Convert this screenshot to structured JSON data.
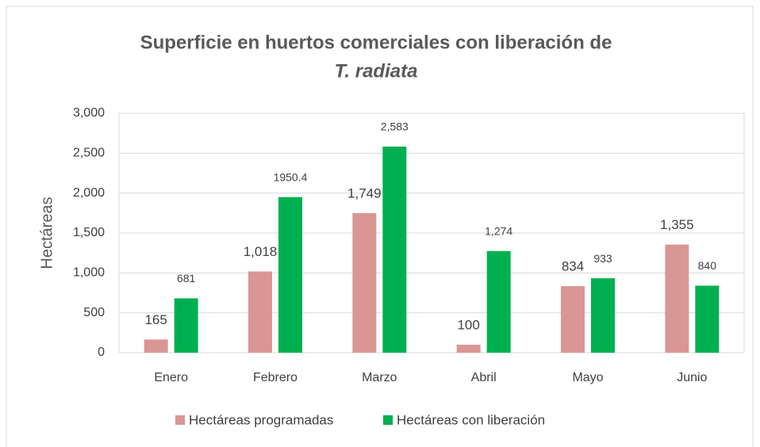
{
  "chart_data": {
    "type": "bar",
    "title": [
      "Superficie en huertos comerciales con liberación de",
      "T. radiata"
    ],
    "ylabel": "Hectáreas",
    "categories": [
      "Enero",
      "Febrero",
      "Marzo",
      "Abril",
      "Mayo",
      "Junio"
    ],
    "series": [
      {
        "name": "Hectáreas programadas",
        "color": "#d99694",
        "values": [
          165,
          1018,
          1749,
          100,
          834,
          1355
        ],
        "value_labels": [
          "165",
          "1,018",
          "1,749",
          "100",
          "834",
          "1,355"
        ]
      },
      {
        "name": "Hectáreas con liberación",
        "color": "#00b050",
        "values": [
          681,
          1950.4,
          2583,
          1274,
          933,
          840
        ],
        "value_labels": [
          "681",
          "1950.4",
          "2,583",
          "1,274",
          "933",
          "840"
        ]
      }
    ],
    "ylim": [
      0,
      3000
    ],
    "yticks": [
      0,
      500,
      {
        "value": 1000,
        "label": "1,000"
      },
      {
        "value": 1500,
        "label": "1,500"
      },
      {
        "value": 2000,
        "label": "2,000"
      },
      {
        "value": 2500,
        "label": "2,500"
      },
      {
        "value": 3000,
        "label": "3,000"
      }
    ],
    "grid": true,
    "legend": "bottom"
  }
}
